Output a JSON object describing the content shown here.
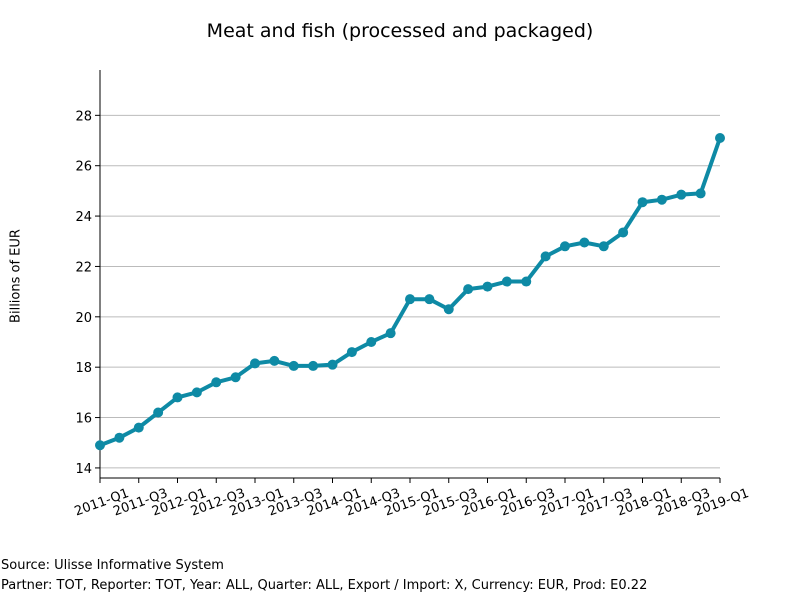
{
  "chart_data": {
    "type": "line",
    "title": "Meat and fish (processed and packaged)",
    "ylabel": "Billions of EUR",
    "xlabel": "",
    "ylim": [
      13.6,
      29.8
    ],
    "yticks": [
      14,
      16,
      18,
      20,
      22,
      24,
      26,
      28
    ],
    "xtick_labels": [
      "2011-Q1",
      "2011-Q3",
      "2012-Q1",
      "2012-Q3",
      "2013-Q1",
      "2013-Q3",
      "2014-Q1",
      "2014-Q3",
      "2015-Q1",
      "2015-Q3",
      "2016-Q1",
      "2016-Q3",
      "2017-Q1",
      "2017-Q3",
      "2018-Q1",
      "2018-Q3",
      "2019-Q1"
    ],
    "grid": "horizontal",
    "color": "#0e8aa5",
    "series": [
      {
        "x": [
          "2011-Q1",
          "2011-Q2",
          "2011-Q3",
          "2011-Q4",
          "2012-Q1",
          "2012-Q2",
          "2012-Q3",
          "2012-Q4",
          "2013-Q1",
          "2013-Q2",
          "2013-Q3",
          "2013-Q4",
          "2014-Q1",
          "2014-Q2",
          "2014-Q3",
          "2014-Q4",
          "2015-Q1",
          "2015-Q2",
          "2015-Q3",
          "2015-Q4",
          "2016-Q1",
          "2016-Q2",
          "2016-Q3",
          "2016-Q4",
          "2017-Q1",
          "2017-Q2",
          "2017-Q3",
          "2017-Q4",
          "2018-Q1",
          "2018-Q2",
          "2018-Q3",
          "2018-Q4",
          "2019-Q1"
        ],
        "values": [
          14.9,
          15.2,
          15.6,
          16.2,
          16.8,
          17.0,
          17.4,
          17.6,
          18.15,
          18.25,
          18.05,
          18.05,
          18.1,
          18.6,
          19.0,
          19.35,
          20.7,
          20.7,
          20.3,
          21.1,
          21.2,
          21.4,
          21.4,
          22.4,
          22.8,
          22.95,
          22.8,
          23.35,
          24.55,
          24.65,
          24.85,
          24.9,
          27.1
        ]
      }
    ]
  },
  "footer": {
    "source": "Source: Ulisse Informative System",
    "meta": "Partner: TOT, Reporter: TOT, Year: ALL, Quarter: ALL, Export / Import: X, Currency: EUR, Prod: E0.22"
  }
}
